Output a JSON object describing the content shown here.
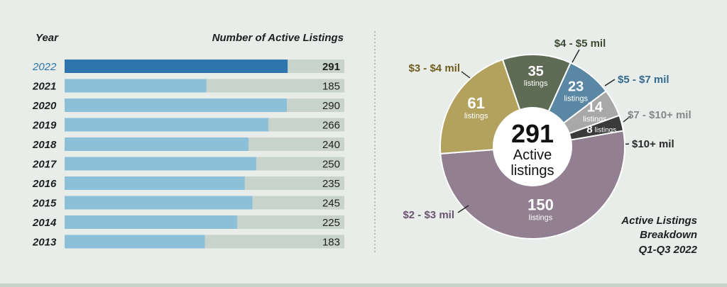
{
  "colors": {
    "background": "#e8ede9",
    "bar_track": "#c8d3cc",
    "bar_fill": "#8cc0d9",
    "bar_highlight": "#2e75ad",
    "year_highlight_text": "#2e75ad",
    "text_dark": "#1f1f1f",
    "divider": "#9aa39c"
  },
  "bar_panel": {
    "year_header": "Year",
    "value_header": "Number of Active Listings"
  },
  "chart_data": [
    {
      "type": "bar",
      "orientation": "horizontal",
      "categories": [
        "2022",
        "2021",
        "2020",
        "2019",
        "2018",
        "2017",
        "2016",
        "2015",
        "2014",
        "2013"
      ],
      "values": [
        291,
        185,
        290,
        266,
        240,
        250,
        235,
        245,
        225,
        183
      ],
      "value_labels": [
        "291",
        "185",
        "290",
        "266",
        "240",
        "250",
        "235",
        "245",
        "225",
        "183"
      ],
      "highlight": "2022",
      "xlim": [
        0,
        365
      ],
      "grid": false
    },
    {
      "type": "pie",
      "style": "donut",
      "center_value": "291",
      "center_label_1": "Active",
      "center_label_2": "listings",
      "slices": [
        {
          "label": "$4 - $5 mil",
          "value": 35,
          "value_label": "35",
          "unit": "listings",
          "color": "#5e6b55",
          "label_color": "#3b4a33"
        },
        {
          "label": "$5 - $7 mil",
          "value": 23,
          "value_label": "23",
          "unit": "listings",
          "color": "#5a87a4",
          "label_color": "#336a8e"
        },
        {
          "label": "$7 - $10+ mil",
          "value": 14,
          "value_label": "14",
          "unit": "listings",
          "color": "#a8a8a8",
          "label_color": "#888888"
        },
        {
          "label": "$10+ mil",
          "value": 8,
          "value_label": "8",
          "unit": "listings",
          "color": "#3a3a3a",
          "label_color": "#2a2a2a"
        },
        {
          "label": "$2 - $3 mil",
          "value": 150,
          "value_label": "150",
          "unit": "listings",
          "color": "#927f91",
          "label_color": "#6a5470"
        },
        {
          "label": "$3 - $4 mil",
          "value": 61,
          "value_label": "61",
          "unit": "listings",
          "color": "#b3a15e",
          "label_color": "#6f5f1e"
        }
      ],
      "caption": [
        "Active Listings",
        "Breakdown",
        "Q1-Q3 2022"
      ]
    }
  ]
}
